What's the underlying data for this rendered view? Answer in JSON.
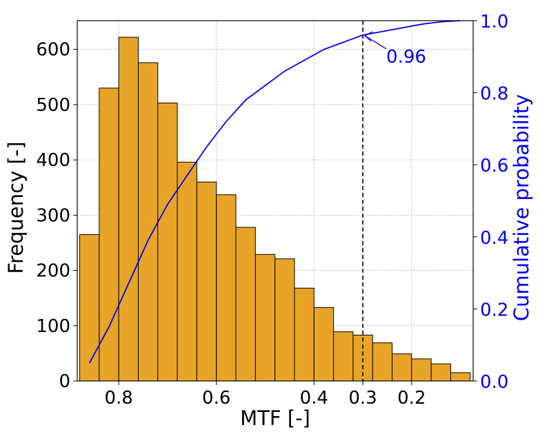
{
  "chart_data": {
    "type": "bar",
    "title": "",
    "xlabel": "MTF [-]",
    "ylabel": "Frequency [-]",
    "y2label": "Cumulative probability",
    "x_reversed": true,
    "xlim": [
      0.885,
      0.074
    ],
    "ylim": [
      0,
      652
    ],
    "y2lim": [
      0,
      1.0
    ],
    "grid": true,
    "x_ticks": [
      0.8,
      0.6,
      0.4,
      0.3,
      0.2
    ],
    "x_tick_labels": [
      "0.8",
      "0.6",
      "0.4",
      "0.3",
      "0.2"
    ],
    "y_ticks": [
      0,
      100,
      200,
      300,
      400,
      500,
      600
    ],
    "y_tick_labels": [
      "0",
      "100",
      "200",
      "300",
      "400",
      "500",
      "600"
    ],
    "y2_ticks": [
      0.0,
      0.2,
      0.4,
      0.6,
      0.8,
      1.0
    ],
    "y2_tick_labels": [
      "0.0",
      "0.2",
      "0.4",
      "0.6",
      "0.8",
      "1.0"
    ],
    "histogram": {
      "bin_edges": [
        0.88,
        0.84,
        0.8,
        0.76,
        0.72,
        0.68,
        0.64,
        0.6,
        0.56,
        0.52,
        0.48,
        0.44,
        0.4,
        0.36,
        0.32,
        0.28,
        0.24,
        0.2,
        0.16,
        0.12,
        0.08
      ],
      "counts": [
        265,
        530,
        622,
        576,
        503,
        396,
        360,
        337,
        278,
        229,
        221,
        168,
        133,
        89,
        83,
        69,
        49,
        40,
        31,
        15
      ],
      "color": "#E8A427",
      "edge_color": "#000000"
    },
    "cumulative": {
      "name": "Cumulative probability",
      "color": "#0000EE",
      "x": [
        0.86,
        0.82,
        0.78,
        0.74,
        0.7,
        0.66,
        0.62,
        0.58,
        0.54,
        0.5,
        0.46,
        0.42,
        0.38,
        0.34,
        0.3,
        0.26,
        0.22,
        0.18,
        0.14,
        0.1
      ],
      "y": [
        0.05,
        0.15,
        0.27,
        0.39,
        0.49,
        0.57,
        0.65,
        0.72,
        0.78,
        0.82,
        0.86,
        0.89,
        0.92,
        0.94,
        0.96,
        0.97,
        0.98,
        0.99,
        0.997,
        1.0
      ]
    },
    "reference_line": {
      "x": 0.3,
      "style": "dashed",
      "color": "#000000"
    },
    "annotation": {
      "text": "0.96",
      "x": 0.3,
      "y": 0.96,
      "color": "#0000EE"
    }
  }
}
